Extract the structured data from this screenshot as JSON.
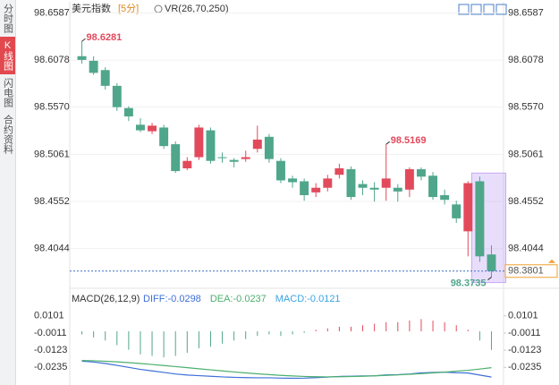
{
  "sidebar": {
    "tabs": [
      "分时图",
      "K线图",
      "闪电图",
      "合约资料"
    ],
    "active": 1
  },
  "chart_data": [
    {
      "type": "candlestick",
      "title": "美元指数",
      "period": "[5分]",
      "indicator": "VR(26,70,250)",
      "up_color": "#e24a5c",
      "down_color": "#4fa68b",
      "open": [
        98.612,
        98.607,
        98.597,
        98.58,
        98.556,
        98.538,
        98.531,
        98.535,
        98.517,
        98.491,
        98.503,
        98.532,
        98.503,
        98.5,
        98.501,
        98.512,
        98.525,
        98.499,
        98.48,
        98.477,
        98.465,
        98.47,
        98.484,
        98.49,
        98.474,
        98.47,
        98.47,
        98.47,
        98.468,
        98.49,
        98.483,
        98.462,
        98.452,
        98.423,
        98.477,
        98.398
      ],
      "high": [
        98.6281,
        98.612,
        98.6,
        98.583,
        98.558,
        98.545,
        98.54,
        98.538,
        98.52,
        98.503,
        98.538,
        98.535,
        98.508,
        98.502,
        98.51,
        98.537,
        98.528,
        98.502,
        98.483,
        98.48,
        98.475,
        98.484,
        98.496,
        98.493,
        98.478,
        98.476,
        98.5169,
        98.474,
        98.492,
        98.492,
        98.487,
        98.468,
        98.456,
        98.477,
        98.482,
        98.408
      ],
      "low": [
        98.604,
        98.592,
        98.576,
        98.553,
        98.542,
        98.53,
        98.528,
        98.512,
        98.486,
        98.489,
        98.5,
        98.496,
        98.497,
        98.492,
        98.498,
        98.508,
        98.497,
        98.475,
        98.47,
        98.456,
        98.46,
        98.466,
        98.48,
        98.457,
        98.462,
        98.455,
        98.456,
        98.455,
        98.46,
        98.478,
        98.457,
        98.452,
        98.432,
        98.396,
        98.39,
        98.3735
      ],
      "close": [
        98.608,
        98.594,
        98.58,
        98.557,
        98.547,
        98.532,
        98.537,
        98.515,
        98.488,
        98.499,
        98.535,
        98.499,
        98.502,
        98.498,
        98.503,
        98.522,
        98.501,
        98.478,
        98.476,
        98.462,
        98.47,
        98.48,
        98.491,
        98.46,
        98.47,
        98.468,
        98.48,
        98.466,
        98.49,
        98.482,
        98.46,
        98.457,
        98.437,
        98.475,
        98.396,
        98.3801
      ],
      "ylim": [
        98.3615,
        98.6707
      ],
      "yticks": [
        98.6587,
        98.6078,
        {
          "value": 98.557,
          "label": "98.5570"
        },
        98.5061,
        98.4552,
        98.4044
      ],
      "grid": true
    },
    {
      "type": "macd",
      "title": "MACD(26,12,9)",
      "ylim": [
        -0.035,
        0.0164
      ],
      "yticks": [
        0.0101,
        -0.0011,
        -0.0123,
        -0.0235
      ],
      "series": [
        {
          "name": "DIFF",
          "label": "DIFF:-0.0298",
          "color": "#3d6fd8",
          "values": [
            -0.0195,
            -0.02,
            -0.021,
            -0.0222,
            -0.0235,
            -0.0248,
            -0.0258,
            -0.0268,
            -0.0278,
            -0.0285,
            -0.0289,
            -0.0293,
            -0.0297,
            -0.03,
            -0.0302,
            -0.0303,
            -0.0303,
            -0.0305,
            -0.0306,
            -0.0305,
            -0.0302,
            -0.0298,
            -0.0294,
            -0.0293,
            -0.0291,
            -0.029,
            -0.0284,
            -0.0283,
            -0.0278,
            -0.0271,
            -0.0268,
            -0.0266,
            -0.027,
            -0.0272,
            -0.0285,
            -0.0298
          ]
        },
        {
          "name": "DEA",
          "label": "DEA:-0.0237",
          "color": "#4caf6e",
          "values": [
            -0.019,
            -0.0192,
            -0.0195,
            -0.0199,
            -0.0204,
            -0.021,
            -0.0216,
            -0.0223,
            -0.023,
            -0.0237,
            -0.0244,
            -0.0251,
            -0.0258,
            -0.0265,
            -0.0271,
            -0.0277,
            -0.0282,
            -0.0287,
            -0.0291,
            -0.0294,
            -0.0296,
            -0.0297,
            -0.0296,
            -0.0295,
            -0.0293,
            -0.029,
            -0.0287,
            -0.0284,
            -0.028,
            -0.0276,
            -0.0271,
            -0.0266,
            -0.026,
            -0.0254,
            -0.0246,
            -0.0237
          ]
        },
        {
          "name": "MACD",
          "label": "MACD:-0.0121",
          "color": "#39a3e3",
          "up_color": "#e24a5c",
          "down_color": "#4fa68b",
          "values": [
            -0.002,
            -0.004,
            -0.006,
            -0.009,
            -0.012,
            -0.015,
            -0.016,
            -0.017,
            -0.016,
            -0.014,
            -0.011,
            -0.01,
            -0.008,
            -0.006,
            -0.005,
            -0.003,
            -0.002,
            -0.003,
            -0.002,
            -0.001,
            0.001,
            0.002,
            0.003,
            0.003,
            0.004,
            0.005,
            0.006,
            0.006,
            0.007,
            0.008,
            0.007,
            0.006,
            0.004,
            0.001,
            -0.006,
            -0.0121
          ]
        }
      ]
    }
  ]
}
